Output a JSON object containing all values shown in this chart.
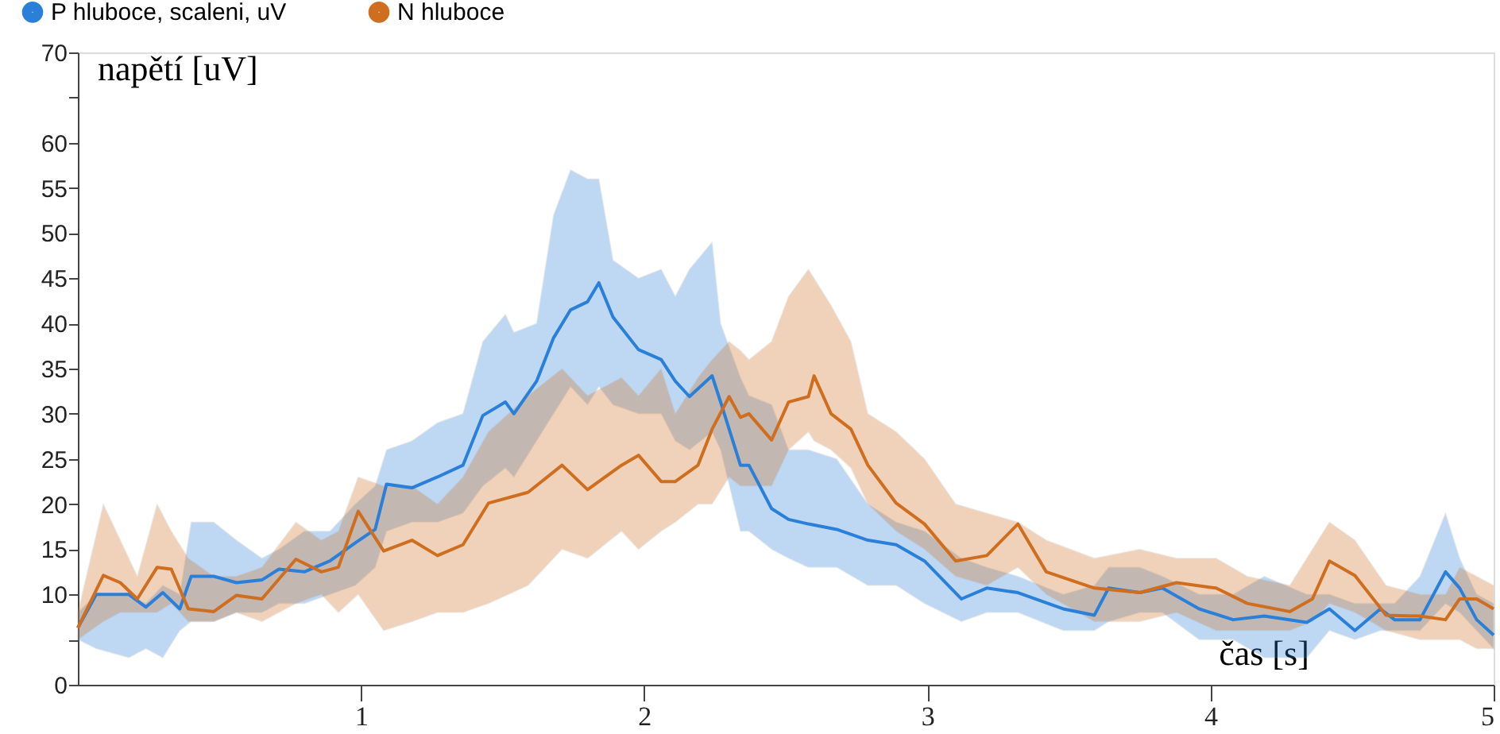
{
  "chart_data": {
    "type": "line",
    "xlabel": "čas [s]",
    "ylabel": "napětí [uV]",
    "xlim": [
      0,
      5
    ],
    "ylim": [
      0,
      70
    ],
    "xticks": [
      1,
      2,
      3,
      4,
      5
    ],
    "yticks": [
      0,
      {
        "value": 5,
        "label": null
      },
      10,
      15,
      20,
      25,
      30,
      35,
      40,
      45,
      50,
      55,
      60,
      {
        "value": 65,
        "label": null
      },
      70
    ],
    "grid": false,
    "legend": "top left",
    "line_style": "solid",
    "series": [
      {
        "name": "P hluboce, scaleni, uV",
        "color": "#2a80d8",
        "x": [
          0,
          0.065,
          0.18,
          0.24,
          0.3,
          0.36,
          0.4,
          0.48,
          0.56,
          0.65,
          0.71,
          0.8,
          0.89,
          0.98,
          1.05,
          1.09,
          1.18,
          1.27,
          1.36,
          1.43,
          1.51,
          1.54,
          1.62,
          1.68,
          1.74,
          1.8,
          1.84,
          1.89,
          1.98,
          2.06,
          2.11,
          2.16,
          2.24,
          2.27,
          2.34,
          2.37,
          2.45,
          2.51,
          2.58,
          2.68,
          2.79,
          2.89,
          2.99,
          3.12,
          3.21,
          3.32,
          3.48,
          3.59,
          3.64,
          3.75,
          3.83,
          3.96,
          4.08,
          4.19,
          4.34,
          4.42,
          4.51,
          4.6,
          4.65,
          4.74,
          4.83,
          4.88,
          4.94,
          5.0
        ],
        "values": [
          6.3,
          10,
          10,
          8.6,
          10.2,
          8.4,
          12,
          12,
          11.3,
          11.6,
          12.8,
          12.5,
          13.7,
          15.7,
          17.2,
          22.2,
          21.8,
          23,
          24.3,
          29.8,
          31.3,
          30,
          33.6,
          38.4,
          41.5,
          42.4,
          44.5,
          40.7,
          37.1,
          36,
          33.6,
          31.9,
          34.2,
          31.3,
          24.3,
          24.3,
          19.5,
          18.3,
          17.8,
          17.2,
          16,
          15.5,
          13.7,
          9.5,
          10.7,
          10.2,
          8.4,
          7.7,
          10.7,
          10.2,
          10.7,
          8.4,
          7.2,
          7.6,
          6.9,
          8.4,
          6,
          8.4,
          7.2,
          7.2,
          12.5,
          10.7,
          7.2,
          5.5
        ],
        "upper": [
          8,
          10,
          10,
          9,
          11,
          10,
          18,
          18,
          16,
          14,
          15,
          17,
          17,
          20,
          22,
          26,
          27,
          29,
          30,
          38,
          41,
          39,
          40,
          52,
          57,
          56,
          56,
          47,
          45,
          46,
          43,
          46,
          49,
          40,
          34,
          32,
          31,
          26,
          26,
          25,
          20,
          18,
          17,
          14,
          13,
          12,
          10,
          11,
          13,
          13,
          12,
          10,
          10,
          12,
          10,
          10,
          9,
          9,
          9,
          12,
          19,
          14,
          10,
          9
        ],
        "lower": [
          5,
          4,
          3,
          4,
          3,
          6,
          7,
          7,
          8,
          8,
          9,
          9,
          10,
          11,
          13,
          17,
          18,
          18,
          19,
          22,
          24,
          23,
          27,
          30,
          33,
          31,
          33,
          31,
          30,
          30,
          27,
          26,
          28,
          26,
          17,
          17,
          15,
          14,
          13,
          13,
          11,
          11,
          9,
          7,
          8,
          8,
          6,
          6,
          7,
          8,
          8,
          5,
          5,
          3,
          3,
          6,
          5,
          6,
          6,
          6,
          9,
          8,
          6,
          4
        ]
      },
      {
        "name": "N hluboce",
        "color": "#cf6e1e",
        "x": [
          0,
          0.09,
          0.15,
          0.21,
          0.28,
          0.33,
          0.39,
          0.48,
          0.56,
          0.65,
          0.77,
          0.86,
          0.92,
          0.99,
          1.08,
          1.18,
          1.27,
          1.36,
          1.45,
          1.59,
          1.71,
          1.8,
          1.92,
          1.98,
          2.06,
          2.11,
          2.19,
          2.24,
          2.3,
          2.34,
          2.37,
          2.45,
          2.51,
          2.58,
          2.6,
          2.66,
          2.73,
          2.79,
          2.89,
          2.99,
          3.1,
          3.21,
          3.32,
          3.42,
          3.59,
          3.75,
          3.88,
          4.02,
          4.13,
          4.28,
          4.36,
          4.42,
          4.51,
          4.62,
          4.74,
          4.83,
          4.88,
          4.94,
          5.0
        ],
        "values": [
          6.3,
          12.1,
          11.3,
          9.5,
          13,
          12.8,
          8.4,
          8.1,
          9.9,
          9.5,
          13.9,
          12.5,
          13,
          19.2,
          14.8,
          16,
          14.3,
          15.5,
          20.1,
          21.3,
          24.3,
          21.6,
          24.3,
          25.4,
          22.5,
          22.5,
          24.3,
          28.3,
          31.9,
          29.6,
          30,
          27.1,
          31.3,
          31.9,
          34.2,
          30,
          28.3,
          24.3,
          20.1,
          17.8,
          13.7,
          14.3,
          17.8,
          12.5,
          10.7,
          10.2,
          11.3,
          10.7,
          9,
          8.1,
          9.5,
          13.7,
          12.1,
          7.7,
          7.6,
          7.2,
          9.5,
          9.5,
          8.4
        ],
        "upper": [
          8,
          20,
          16,
          12,
          20,
          17,
          14,
          12,
          12,
          13,
          18,
          16,
          17,
          23,
          22,
          22,
          20,
          23,
          28,
          32,
          35,
          32,
          34,
          32,
          35,
          30,
          34,
          36,
          38,
          37,
          36,
          38,
          43,
          46,
          45,
          42,
          38,
          30,
          28,
          25,
          20,
          19,
          18,
          16,
          14,
          15,
          14,
          14,
          12,
          11,
          15,
          18,
          16,
          11,
          10,
          10,
          13,
          12,
          11
        ],
        "lower": [
          5,
          7,
          8,
          8,
          8,
          9,
          7,
          7,
          8,
          7,
          9,
          10,
          8,
          10,
          6,
          7,
          8,
          8,
          9,
          11,
          15,
          14,
          17,
          15,
          17,
          18,
          20,
          20,
          23,
          22,
          22,
          22,
          26,
          28,
          27,
          26,
          24,
          20,
          17,
          15,
          12,
          11,
          13,
          10,
          7,
          7,
          8,
          6,
          6,
          6,
          7,
          9,
          8,
          6,
          5,
          5,
          5,
          4,
          4
        ]
      }
    ]
  }
}
